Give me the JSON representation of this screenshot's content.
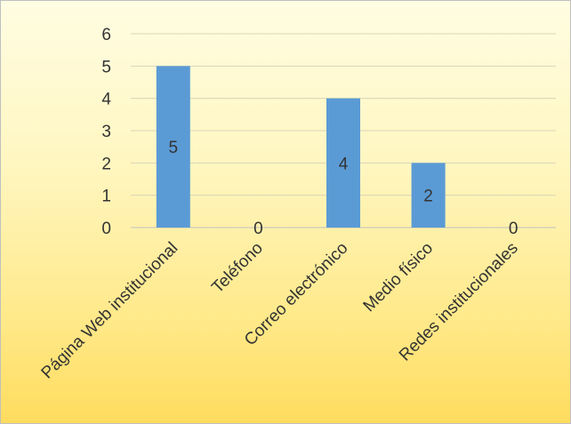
{
  "chart_data": {
    "type": "bar",
    "title": "",
    "xlabel": "",
    "ylabel": "",
    "categories": [
      "Página Web institucional",
      "Teléfono",
      "Correo electrónico",
      "Medio físico",
      "Redes institucionales"
    ],
    "values": [
      5,
      0,
      4,
      2,
      0
    ],
    "ylim": [
      0,
      6
    ],
    "yticks": [
      "0",
      "1",
      "2",
      "3",
      "4",
      "5",
      "6"
    ],
    "data_labels": [
      "5",
      "0",
      "4",
      "2",
      "0"
    ],
    "grid": true,
    "legend": "none",
    "colors": {
      "bar": "#5b9bd5",
      "background_top": "#fffde3",
      "background_bottom": "#ffdc5e"
    }
  }
}
